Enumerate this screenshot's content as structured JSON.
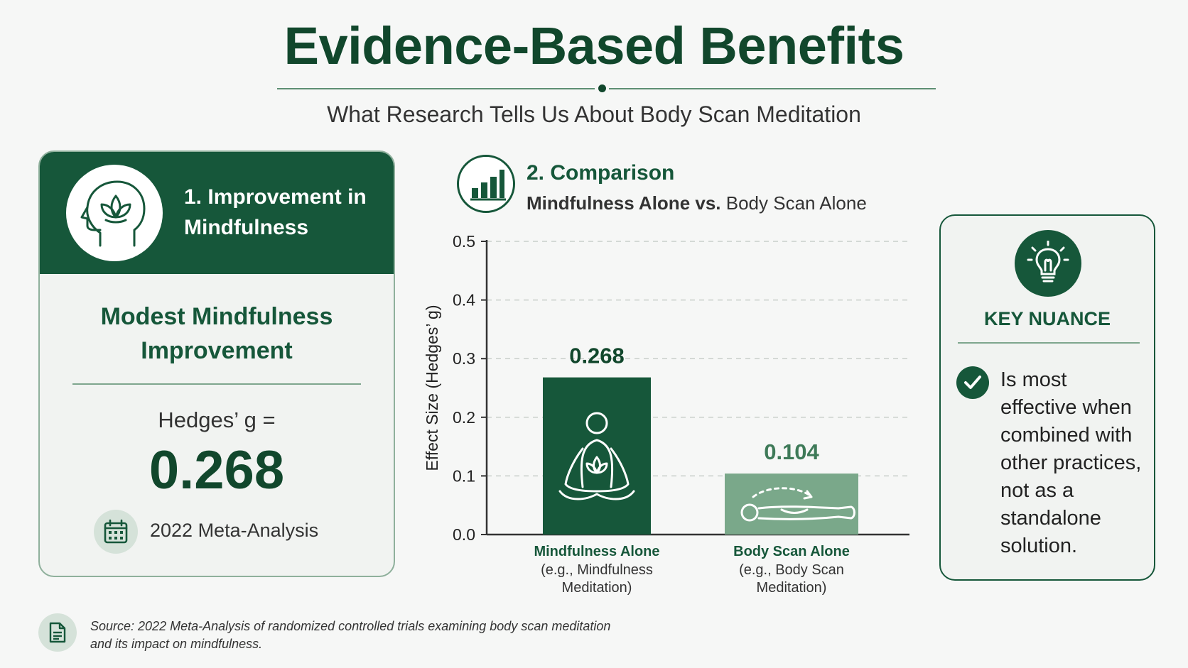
{
  "title": "Evidence-Based Benefits",
  "subtitle": "What Research Tells Us About Body Scan Meditation",
  "left_card": {
    "title": "1. Improvement in Mindfulness",
    "headline_line1": "Modest Mindfulness",
    "headline_line2": "Improvement",
    "metric_label": "Hedges’ g =",
    "metric_value": "0.268",
    "meta_label": "2022 Meta-Analysis",
    "icon": "head-lotus-icon"
  },
  "comparison": {
    "title": "2. Comparison",
    "subtitle_bold": "Mindfulness Alone vs.",
    "subtitle_rest": " Body Scan Alone",
    "icon": "bar-chart-icon"
  },
  "chart_data": {
    "type": "bar",
    "categories": [
      "Mindfulness Alone",
      "Body Scan Alone"
    ],
    "category_notes": [
      "(e.g., Mindfulness Meditation)",
      "(e.g., Body Scan Meditation)"
    ],
    "category_notes_lines": [
      [
        "(e.g., Mindfulness",
        "Meditation)"
      ],
      [
        "(e.g., Body Scan",
        "Meditation)"
      ]
    ],
    "values": [
      0.268,
      0.104
    ],
    "value_labels": [
      "0.268",
      "0.104"
    ],
    "bar_colors": [
      "#16573a",
      "#7aa88a"
    ],
    "bar_icons": [
      "meditating-person-icon",
      "lying-person-icon"
    ],
    "ylabel": "Effect Size (Hedges’ g)",
    "ylim": [
      0,
      0.5
    ],
    "yticks": [
      "0.0",
      "0.1",
      "0.2",
      "0.3",
      "0.4",
      "0.5"
    ],
    "grid": true
  },
  "key_nuance": {
    "title": "KEY NUANCE",
    "text_lines": [
      "Is most",
      "effective when",
      "combined with",
      "other practices,",
      "not as a",
      "standalone",
      "solution."
    ]
  },
  "footer": {
    "source_line1": "Source: 2022 Meta-Analysis of randomized controlled trials examining body scan meditation",
    "source_line2": "and its impact on mindfulness."
  },
  "colors": {
    "dark_green": "#11472c",
    "primary_green": "#16573a",
    "light_green": "#7aa88a"
  }
}
